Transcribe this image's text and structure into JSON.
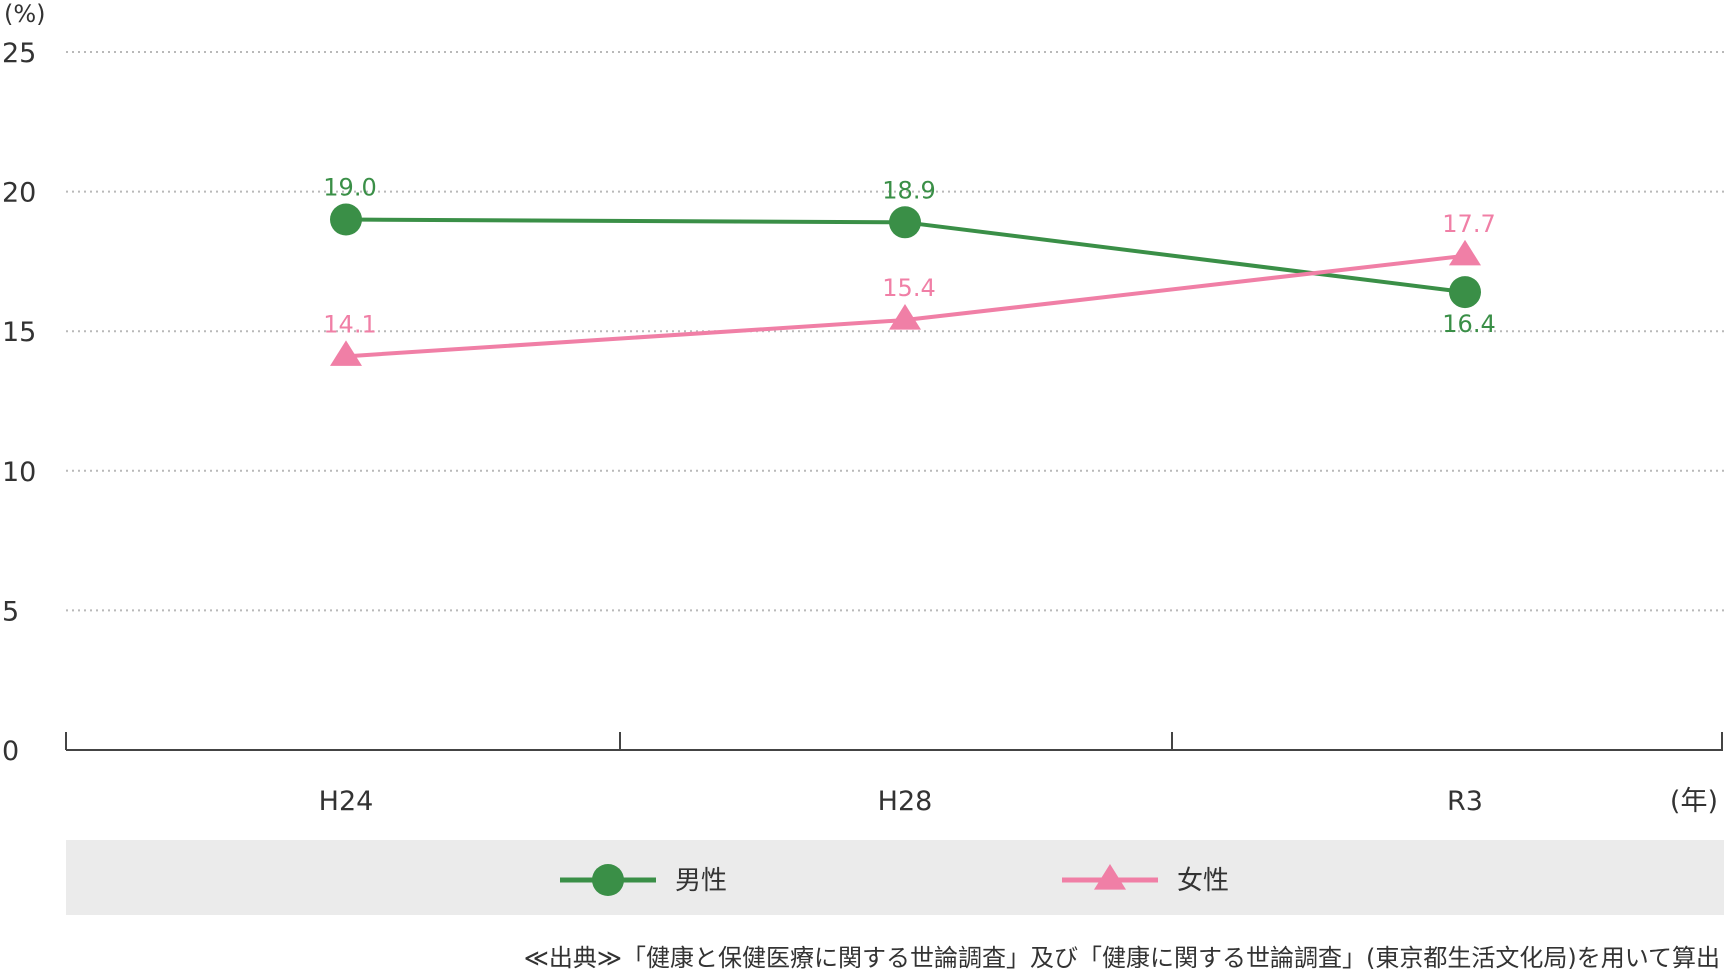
{
  "chart_data": {
    "type": "line",
    "categories": [
      "H24",
      "H28",
      "R3"
    ],
    "series": [
      {
        "name": "男性",
        "values": [
          19.0,
          18.9,
          16.4
        ],
        "labels": [
          "19.0",
          "18.9",
          "16.4"
        ],
        "color": "#3a8f47",
        "marker": "circle"
      },
      {
        "name": "女性",
        "values": [
          14.1,
          15.4,
          17.7
        ],
        "labels": [
          "14.1",
          "15.4",
          "17.7"
        ],
        "color": "#f07fa6",
        "marker": "triangle"
      }
    ],
    "ylim": [
      0,
      25
    ],
    "yticks": [
      "0",
      "5",
      "10",
      "15",
      "20",
      "25"
    ],
    "ylabel": "(%)",
    "xlabel": "(年)",
    "grid": true,
    "legend_position": "bottom",
    "source": "≪出典≫「健康と保健医療に関する世論調査」及び「健康に関する世論調査」(東京都生活文化局)を用いて算出"
  }
}
